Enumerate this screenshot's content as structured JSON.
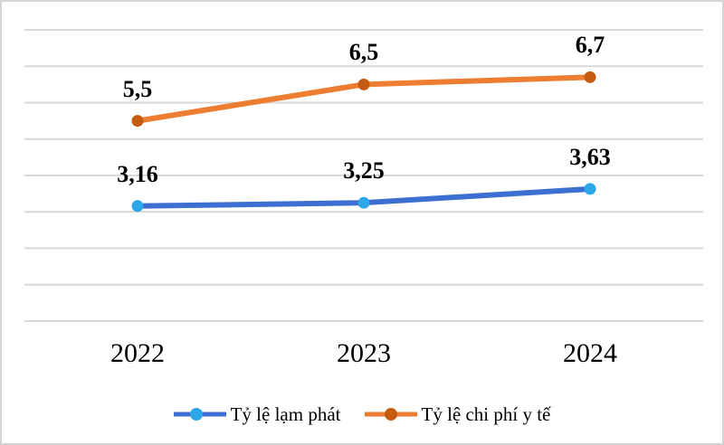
{
  "chart_data": {
    "type": "line",
    "title": "",
    "xlabel": "",
    "ylabel": "",
    "categories": [
      "2022",
      "2023",
      "2024"
    ],
    "series": [
      {
        "id": "inflation",
        "name": "Tỷ lệ lạm phát",
        "values": [
          3.16,
          3.25,
          3.63
        ],
        "labels": [
          "3,16",
          "3,25",
          "3,63"
        ],
        "line_color": "#3c6fd1",
        "marker_color": "#2ea7e9"
      },
      {
        "id": "healthcare-cost",
        "name": "Tỷ lệ chi phí y tế",
        "values": [
          5.5,
          6.5,
          6.7
        ],
        "labels": [
          "5,5",
          "6,5",
          "6,7"
        ],
        "line_color": "#ed7d31",
        "marker_color": "#c55a11"
      }
    ],
    "ylim": [
      0,
      8
    ],
    "gridline_step": 1,
    "grid": true,
    "y_axis_labels_visible": false,
    "legend_position": "bottom",
    "gridline_color": "#d9d9d9",
    "background": "#ffffff",
    "border_color": "#d4d4d4",
    "label_color": "#000000"
  }
}
